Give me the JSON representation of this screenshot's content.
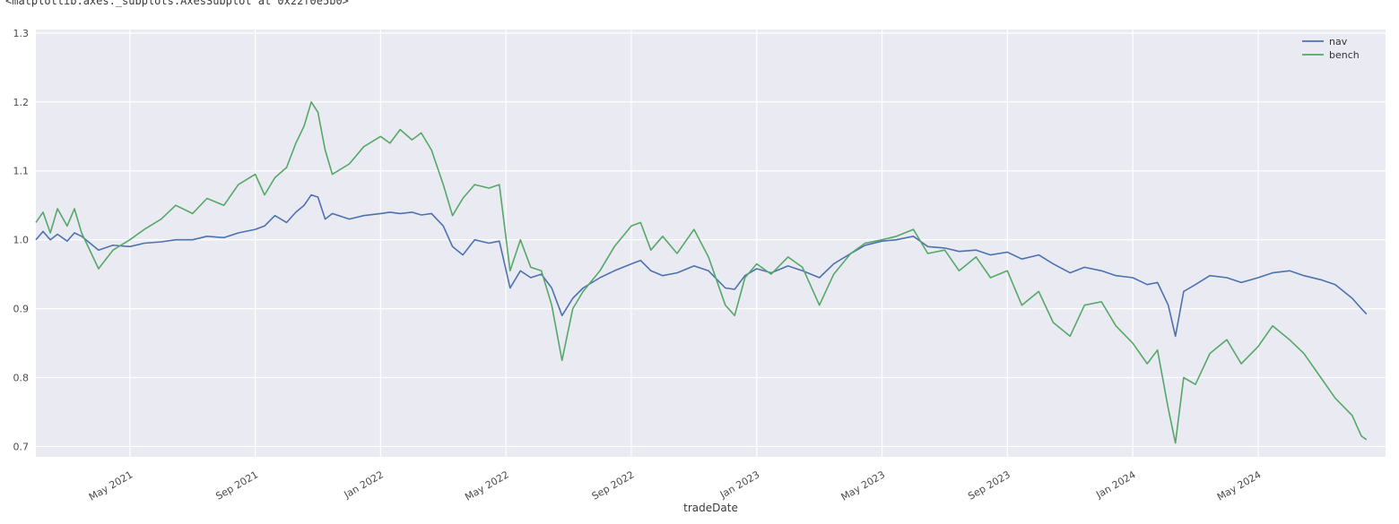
{
  "page": {
    "repr_text": "<matplotlib.axes._subplots.AxesSubplot at 0x22f0e5b0>"
  },
  "chart_data": {
    "type": "line",
    "title": "",
    "xlabel": "tradeDate",
    "ylabel": "",
    "grid": true,
    "legend": {
      "position": "upper right",
      "entries": [
        "nav",
        "bench"
      ]
    },
    "xlim": [
      "2021-02-01",
      "2024-09-03"
    ],
    "ylim": [
      0.685,
      1.305
    ],
    "yticks": [
      0.7,
      0.8,
      0.9,
      1.0,
      1.1,
      1.2,
      1.3
    ],
    "xticks": [
      {
        "label": "May 2021",
        "date": "2021-05-01"
      },
      {
        "label": "Sep 2021",
        "date": "2021-09-01"
      },
      {
        "label": "Jan 2022",
        "date": "2022-01-01"
      },
      {
        "label": "May 2022",
        "date": "2022-05-01"
      },
      {
        "label": "Sep 2022",
        "date": "2022-09-01"
      },
      {
        "label": "Jan 2023",
        "date": "2023-01-01"
      },
      {
        "label": "May 2023",
        "date": "2023-05-01"
      },
      {
        "label": "Sep 2023",
        "date": "2023-09-01"
      },
      {
        "label": "Jan 2024",
        "date": "2024-01-01"
      },
      {
        "label": "May 2024",
        "date": "2024-05-01"
      }
    ],
    "style": {
      "plot_bg": "#eaeaf2",
      "grid_color": "#ffffff",
      "tick_color": "#4a4a4a",
      "label_color": "#3a3a3a",
      "legend_text_color": "#333333"
    },
    "x": [
      "2021-02-01",
      "2021-02-08",
      "2021-02-15",
      "2021-02-22",
      "2021-03-01",
      "2021-03-08",
      "2021-03-15",
      "2021-04-01",
      "2021-04-15",
      "2021-05-01",
      "2021-05-15",
      "2021-06-01",
      "2021-06-15",
      "2021-07-01",
      "2021-07-15",
      "2021-08-01",
      "2021-08-15",
      "2021-09-01",
      "2021-09-10",
      "2021-09-20",
      "2021-10-01",
      "2021-10-10",
      "2021-10-18",
      "2021-10-25",
      "2021-11-01",
      "2021-11-08",
      "2021-11-15",
      "2021-12-01",
      "2021-12-15",
      "2022-01-01",
      "2022-01-10",
      "2022-01-20",
      "2022-02-01",
      "2022-02-10",
      "2022-02-20",
      "2022-03-01",
      "2022-03-10",
      "2022-03-20",
      "2022-04-01",
      "2022-04-15",
      "2022-04-25",
      "2022-05-05",
      "2022-05-15",
      "2022-05-25",
      "2022-06-05",
      "2022-06-15",
      "2022-06-25",
      "2022-07-05",
      "2022-07-15",
      "2022-08-01",
      "2022-08-15",
      "2022-09-01",
      "2022-09-10",
      "2022-09-20",
      "2022-10-01",
      "2022-10-15",
      "2022-11-01",
      "2022-11-15",
      "2022-12-01",
      "2022-12-10",
      "2022-12-20",
      "2023-01-01",
      "2023-01-15",
      "2023-02-01",
      "2023-02-15",
      "2023-03-01",
      "2023-03-15",
      "2023-04-01",
      "2023-04-15",
      "2023-05-01",
      "2023-05-15",
      "2023-06-01",
      "2023-06-15",
      "2023-07-01",
      "2023-07-15",
      "2023-08-01",
      "2023-08-15",
      "2023-09-01",
      "2023-09-15",
      "2023-10-01",
      "2023-10-15",
      "2023-11-01",
      "2023-11-15",
      "2023-12-01",
      "2023-12-15",
      "2024-01-01",
      "2024-01-15",
      "2024-01-25",
      "2024-02-05",
      "2024-02-12",
      "2024-02-20",
      "2024-03-01",
      "2024-03-15",
      "2024-04-01",
      "2024-04-15",
      "2024-05-01",
      "2024-05-15",
      "2024-06-01",
      "2024-06-15",
      "2024-07-01",
      "2024-07-15",
      "2024-08-01",
      "2024-08-10",
      "2024-08-15"
    ],
    "series": [
      {
        "name": "nav",
        "color": "#4c72b0",
        "values": [
          1.0,
          1.012,
          1.0,
          1.008,
          0.998,
          1.01,
          1.005,
          0.985,
          0.992,
          0.99,
          0.995,
          0.997,
          1.0,
          1.0,
          1.005,
          1.003,
          1.01,
          1.015,
          1.02,
          1.035,
          1.025,
          1.04,
          1.05,
          1.065,
          1.062,
          1.03,
          1.038,
          1.03,
          1.035,
          1.038,
          1.04,
          1.038,
          1.04,
          1.036,
          1.038,
          1.02,
          0.99,
          0.978,
          1.0,
          0.995,
          0.998,
          0.93,
          0.955,
          0.945,
          0.95,
          0.93,
          0.89,
          0.915,
          0.93,
          0.945,
          0.955,
          0.965,
          0.97,
          0.955,
          0.948,
          0.952,
          0.962,
          0.955,
          0.93,
          0.928,
          0.948,
          0.958,
          0.952,
          0.962,
          0.955,
          0.945,
          0.965,
          0.98,
          0.992,
          0.998,
          1.0,
          1.005,
          0.99,
          0.988,
          0.983,
          0.985,
          0.978,
          0.982,
          0.972,
          0.978,
          0.965,
          0.952,
          0.96,
          0.955,
          0.948,
          0.945,
          0.935,
          0.938,
          0.905,
          0.86,
          0.925,
          0.935,
          0.948,
          0.945,
          0.938,
          0.945,
          0.952,
          0.955,
          0.948,
          0.942,
          0.935,
          0.915,
          0.9,
          0.892
        ]
      },
      {
        "name": "bench",
        "color": "#55a868",
        "values": [
          1.025,
          1.04,
          1.01,
          1.045,
          1.02,
          1.045,
          1.01,
          0.958,
          0.985,
          1.0,
          1.015,
          1.03,
          1.05,
          1.038,
          1.06,
          1.05,
          1.08,
          1.095,
          1.065,
          1.09,
          1.105,
          1.14,
          1.165,
          1.2,
          1.185,
          1.13,
          1.095,
          1.11,
          1.135,
          1.15,
          1.14,
          1.16,
          1.145,
          1.155,
          1.13,
          1.08,
          1.035,
          1.06,
          1.08,
          1.075,
          1.08,
          0.955,
          1.0,
          0.96,
          0.955,
          0.905,
          0.825,
          0.9,
          0.925,
          0.955,
          0.99,
          1.02,
          1.025,
          0.985,
          1.005,
          0.98,
          1.015,
          0.975,
          0.905,
          0.89,
          0.945,
          0.965,
          0.95,
          0.975,
          0.96,
          0.905,
          0.95,
          0.98,
          0.995,
          1.0,
          1.005,
          1.015,
          0.98,
          0.985,
          0.955,
          0.975,
          0.945,
          0.955,
          0.905,
          0.925,
          0.88,
          0.86,
          0.905,
          0.91,
          0.875,
          0.85,
          0.82,
          0.84,
          0.755,
          0.705,
          0.8,
          0.79,
          0.835,
          0.855,
          0.82,
          0.845,
          0.875,
          0.855,
          0.835,
          0.8,
          0.77,
          0.745,
          0.715,
          0.71
        ]
      }
    ]
  }
}
